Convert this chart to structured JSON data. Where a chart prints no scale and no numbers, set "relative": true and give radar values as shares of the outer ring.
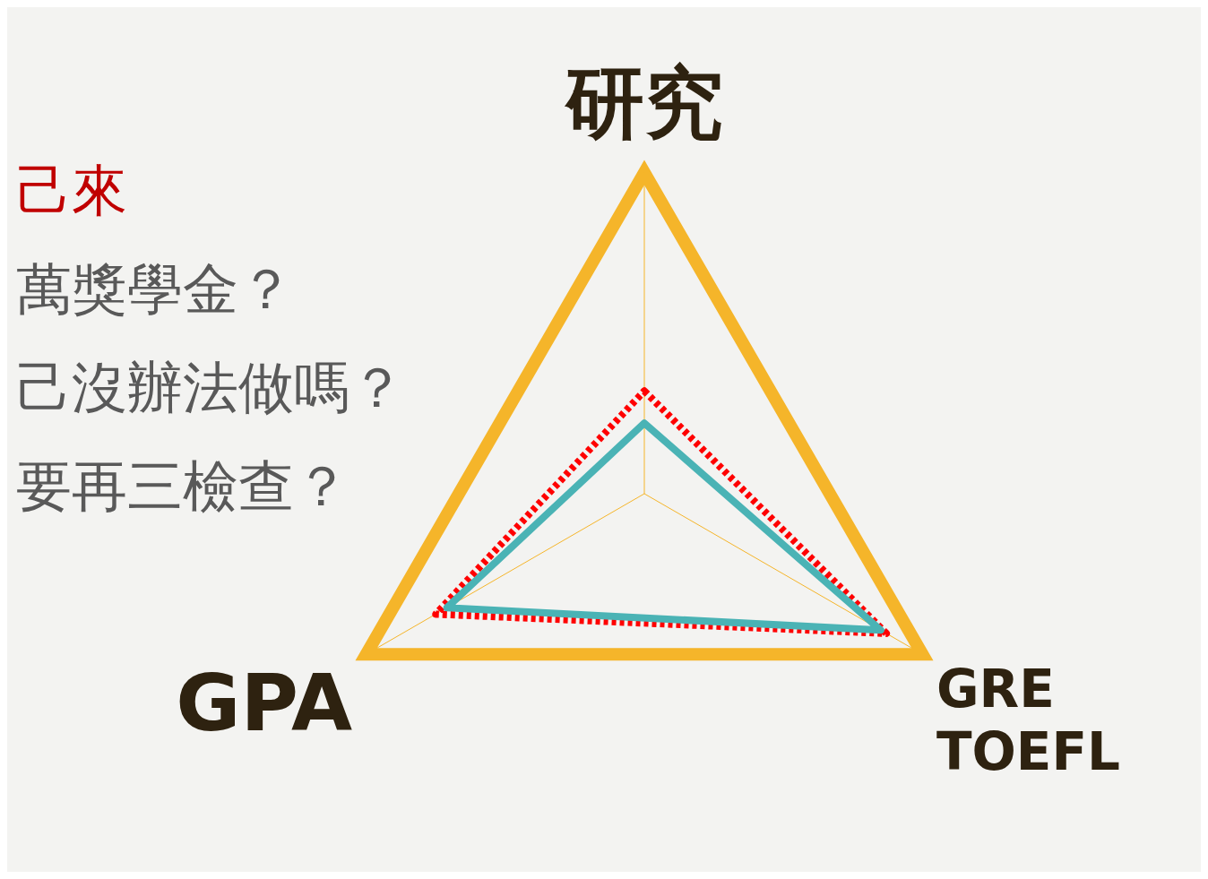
{
  "chart_data": {
    "type": "radar",
    "relative": true,
    "grid": true,
    "legend": false,
    "categories": [
      "研究",
      "GRE\nTOEFL",
      "GPA"
    ],
    "series": [
      {
        "color": "#4ab3b5",
        "line_style": "solid",
        "values": [
          0.22,
          0.85,
          0.71
        ]
      },
      {
        "color": "#ff0000",
        "line_style": "dotted",
        "values": [
          0.32,
          0.87,
          0.75
        ]
      }
    ],
    "annotations": [
      "己來",
      "萬獎學金？",
      "己沒辦法做嗎？",
      "要再三檢查？"
    ]
  }
}
